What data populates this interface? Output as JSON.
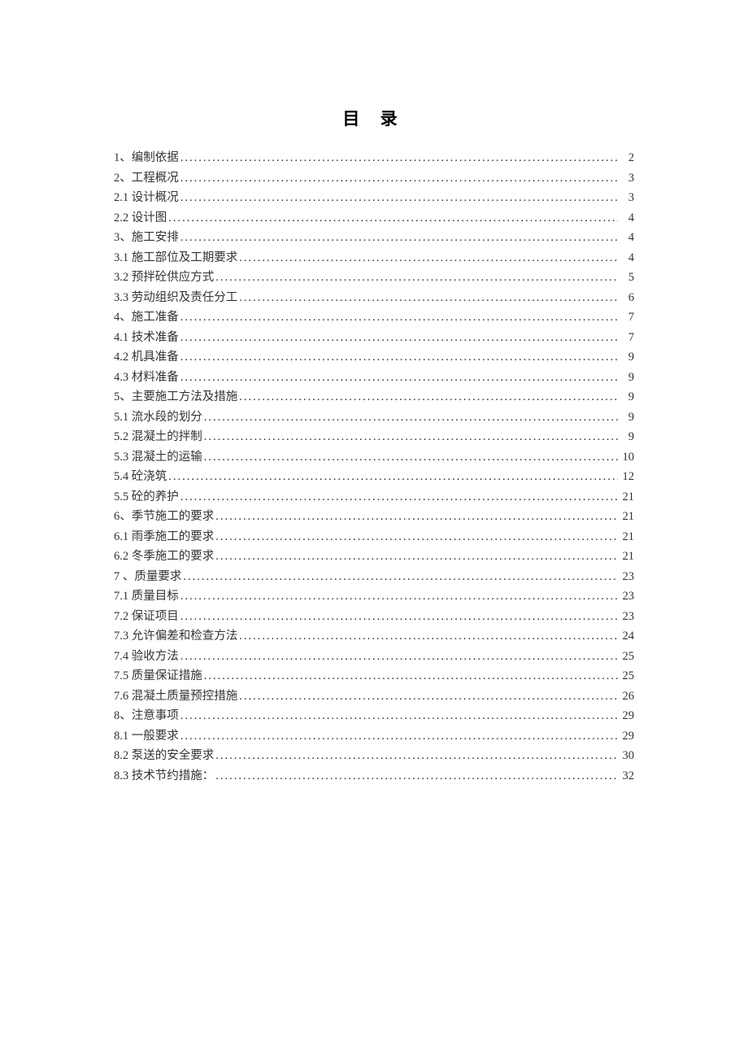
{
  "title": "目 录",
  "text_color": "#333333",
  "background_color": "#ffffff",
  "font_family": "SimSun",
  "title_fontsize": 21,
  "entry_fontsize": 14.5,
  "line_height": 24.5,
  "toc": [
    {
      "label": "1、编制依据",
      "page": "2"
    },
    {
      "label": "2、工程概况",
      "page": "3"
    },
    {
      "label": "2.1 设计概况",
      "page": "3"
    },
    {
      "label": "2.2 设计图",
      "page": "4"
    },
    {
      "label": "3、施工安排",
      "page": "4"
    },
    {
      "label": "3.1 施工部位及工期要求",
      "page": "4"
    },
    {
      "label": "3.2 预拌砼供应方式",
      "page": "5"
    },
    {
      "label": "3.3 劳动组织及责任分工",
      "page": "6"
    },
    {
      "label": "4、施工准备",
      "page": "7"
    },
    {
      "label": "4.1 技术准备",
      "page": "7"
    },
    {
      "label": "4.2 机具准备",
      "page": "9"
    },
    {
      "label": "4.3 材料准备",
      "page": "9"
    },
    {
      "label": "5、主要施工方法及措施",
      "page": "9"
    },
    {
      "label": "5.1 流水段的划分",
      "page": "9"
    },
    {
      "label": "5.2 混凝土的拌制",
      "page": "9"
    },
    {
      "label": "5.3 混凝土的运输",
      "page": "10"
    },
    {
      "label": "5.4 砼浇筑",
      "page": "12"
    },
    {
      "label": "5.5 砼的养护",
      "page": "21"
    },
    {
      "label": "6、季节施工的要求",
      "page": "21"
    },
    {
      "label": "6.1 雨季施工的要求",
      "page": "21"
    },
    {
      "label": "6.2 冬季施工的要求",
      "page": "21"
    },
    {
      "label": "7 、质量要求",
      "page": "23"
    },
    {
      "label": "7.1 质量目标",
      "page": "23"
    },
    {
      "label": "7.2 保证项目",
      "page": "23"
    },
    {
      "label": "7.3 允许偏差和检查方法",
      "page": "24"
    },
    {
      "label": "7.4 验收方法",
      "page": "25"
    },
    {
      "label": "7.5 质量保证措施",
      "page": "25"
    },
    {
      "label": "7.6 混凝土质量预控措施",
      "page": "26"
    },
    {
      "label": "8、注意事项",
      "page": "29"
    },
    {
      "label": "8.1 一般要求",
      "page": "29"
    },
    {
      "label": "8.2 泵送的安全要求",
      "page": "30"
    },
    {
      "label": "8.3 技术节约措施：",
      "page": "32"
    }
  ]
}
